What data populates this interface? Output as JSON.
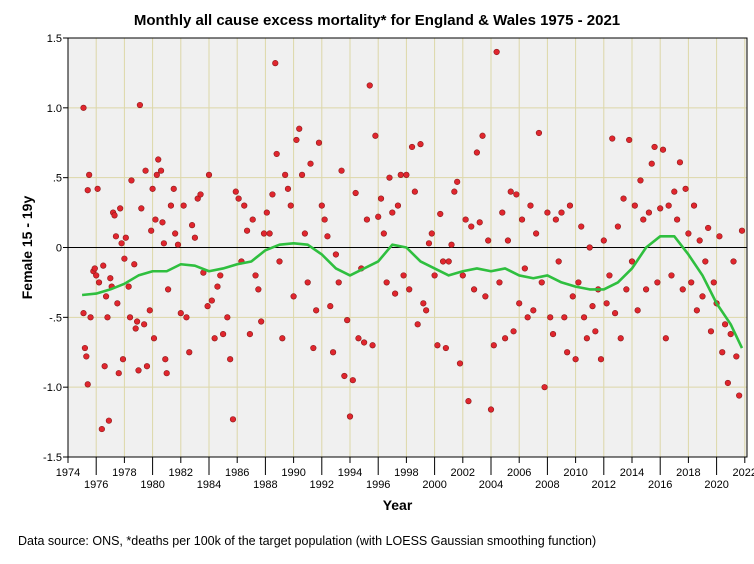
{
  "chart_data": {
    "type": "scatter",
    "title": "Monthly all cause excess mortality* for England & Wales 1975 - 2021",
    "xlabel": "Year",
    "ylabel": "Female 15 - 19y",
    "caption": "Data source: ONS, *deaths per 100k of the target population (with LOESS Gaussian smoothing function)",
    "xlim": [
      1974,
      2022
    ],
    "ylim": [
      -1.5,
      1.5
    ],
    "xticks": [
      1974,
      1976,
      1978,
      1980,
      1982,
      1984,
      1986,
      1988,
      1990,
      1992,
      1994,
      1996,
      1998,
      2000,
      2002,
      2004,
      2006,
      2008,
      2010,
      2012,
      2014,
      2016,
      2018,
      2020,
      2022
    ],
    "yticks": [
      {
        "v": 1.5,
        "label": "1.5"
      },
      {
        "v": 1.0,
        "label": "1.0"
      },
      {
        "v": 0.5,
        "label": ".5"
      },
      {
        "v": 0,
        "label": "0"
      },
      {
        "v": -0.5,
        "label": "-.5"
      },
      {
        "v": -1.0,
        "label": "-1.0"
      },
      {
        "v": -1.5,
        "label": "-1.5"
      }
    ],
    "grid": true,
    "reference_line_y": 0,
    "colors": {
      "points": "#e0262e",
      "point_edge": "#8b1a1a",
      "smooth": "#2fbf3f",
      "plot_bg": "#f0f0f0",
      "grid": "#ddd7a8"
    },
    "points": [
      [
        1975.1,
        1.0
      ],
      [
        1975.1,
        -0.47
      ],
      [
        1975.2,
        -0.72
      ],
      [
        1975.3,
        -0.78
      ],
      [
        1975.4,
        -0.98
      ],
      [
        1975.4,
        0.41
      ],
      [
        1975.5,
        0.52
      ],
      [
        1975.6,
        -0.5
      ],
      [
        1975.8,
        -0.17
      ],
      [
        1975.9,
        -0.15
      ],
      [
        1976.0,
        -0.2
      ],
      [
        1976.1,
        0.42
      ],
      [
        1976.2,
        -0.25
      ],
      [
        1976.4,
        -1.3
      ],
      [
        1976.5,
        -0.13
      ],
      [
        1976.6,
        -0.85
      ],
      [
        1976.7,
        -0.35
      ],
      [
        1976.8,
        -0.5
      ],
      [
        1976.9,
        -1.24
      ],
      [
        1977.0,
        -0.22
      ],
      [
        1977.1,
        -0.28
      ],
      [
        1977.2,
        0.25
      ],
      [
        1977.3,
        0.23
      ],
      [
        1977.4,
        0.08
      ],
      [
        1977.5,
        -0.4
      ],
      [
        1977.6,
        -0.9
      ],
      [
        1977.7,
        0.28
      ],
      [
        1977.8,
        0.03
      ],
      [
        1977.9,
        -0.8
      ],
      [
        1978.0,
        -0.08
      ],
      [
        1978.1,
        0.07
      ],
      [
        1978.3,
        -0.28
      ],
      [
        1978.4,
        -0.5
      ],
      [
        1978.5,
        0.48
      ],
      [
        1978.7,
        -0.12
      ],
      [
        1978.8,
        -0.58
      ],
      [
        1978.9,
        -0.53
      ],
      [
        1979.0,
        -0.88
      ],
      [
        1979.1,
        1.02
      ],
      [
        1979.2,
        0.28
      ],
      [
        1979.4,
        -0.55
      ],
      [
        1979.5,
        0.55
      ],
      [
        1979.6,
        -0.85
      ],
      [
        1979.8,
        -0.45
      ],
      [
        1979.9,
        0.12
      ],
      [
        1980.0,
        0.42
      ],
      [
        1980.1,
        -0.65
      ],
      [
        1980.2,
        0.2
      ],
      [
        1980.3,
        0.52
      ],
      [
        1980.4,
        0.63
      ],
      [
        1980.6,
        0.55
      ],
      [
        1980.7,
        0.18
      ],
      [
        1980.8,
        0.03
      ],
      [
        1980.9,
        -0.8
      ],
      [
        1981.0,
        -0.9
      ],
      [
        1981.1,
        -0.3
      ],
      [
        1981.3,
        0.3
      ],
      [
        1981.5,
        0.42
      ],
      [
        1981.6,
        0.1
      ],
      [
        1981.8,
        0.02
      ],
      [
        1982.0,
        -0.47
      ],
      [
        1982.2,
        0.3
      ],
      [
        1982.4,
        -0.5
      ],
      [
        1982.6,
        -0.75
      ],
      [
        1982.8,
        0.16
      ],
      [
        1983.0,
        0.07
      ],
      [
        1983.2,
        0.35
      ],
      [
        1983.4,
        0.38
      ],
      [
        1983.6,
        -0.18
      ],
      [
        1983.9,
        -0.42
      ],
      [
        1984.0,
        0.52
      ],
      [
        1984.2,
        -0.38
      ],
      [
        1984.4,
        -0.65
      ],
      [
        1984.6,
        -0.28
      ],
      [
        1984.8,
        -0.2
      ],
      [
        1985.0,
        -0.62
      ],
      [
        1985.3,
        -0.5
      ],
      [
        1985.5,
        -0.8
      ],
      [
        1985.7,
        -1.23
      ],
      [
        1985.9,
        0.4
      ],
      [
        1986.1,
        0.35
      ],
      [
        1986.3,
        -0.1
      ],
      [
        1986.5,
        0.3
      ],
      [
        1986.7,
        0.12
      ],
      [
        1986.9,
        -0.62
      ],
      [
        1987.1,
        0.2
      ],
      [
        1987.3,
        -0.2
      ],
      [
        1987.5,
        -0.3
      ],
      [
        1987.7,
        -0.53
      ],
      [
        1987.9,
        0.1
      ],
      [
        1988.1,
        0.25
      ],
      [
        1988.3,
        0.1
      ],
      [
        1988.5,
        0.38
      ],
      [
        1988.7,
        1.32
      ],
      [
        1988.8,
        0.67
      ],
      [
        1989.0,
        -0.1
      ],
      [
        1989.2,
        -0.65
      ],
      [
        1989.4,
        0.52
      ],
      [
        1989.6,
        0.42
      ],
      [
        1989.8,
        0.3
      ],
      [
        1990.0,
        -0.35
      ],
      [
        1990.2,
        0.77
      ],
      [
        1990.4,
        0.85
      ],
      [
        1990.6,
        0.52
      ],
      [
        1990.8,
        0.1
      ],
      [
        1991.0,
        -0.25
      ],
      [
        1991.2,
        0.6
      ],
      [
        1991.4,
        -0.72
      ],
      [
        1991.6,
        -0.45
      ],
      [
        1991.8,
        0.75
      ],
      [
        1992.0,
        0.3
      ],
      [
        1992.2,
        0.2
      ],
      [
        1992.4,
        0.08
      ],
      [
        1992.6,
        -0.42
      ],
      [
        1992.8,
        -0.75
      ],
      [
        1993.0,
        -0.05
      ],
      [
        1993.2,
        -0.25
      ],
      [
        1993.4,
        0.55
      ],
      [
        1993.6,
        -0.92
      ],
      [
        1993.8,
        -0.52
      ],
      [
        1994.0,
        -1.21
      ],
      [
        1994.2,
        -0.95
      ],
      [
        1994.4,
        0.39
      ],
      [
        1994.6,
        -0.65
      ],
      [
        1994.8,
        -0.15
      ],
      [
        1995.0,
        -0.68
      ],
      [
        1995.2,
        0.2
      ],
      [
        1995.4,
        1.16
      ],
      [
        1995.6,
        -0.7
      ],
      [
        1995.8,
        0.8
      ],
      [
        1996.0,
        0.22
      ],
      [
        1996.2,
        0.35
      ],
      [
        1996.4,
        0.1
      ],
      [
        1996.6,
        -0.25
      ],
      [
        1996.8,
        0.5
      ],
      [
        1997.0,
        0.25
      ],
      [
        1997.2,
        -0.33
      ],
      [
        1997.4,
        0.3
      ],
      [
        1997.6,
        0.52
      ],
      [
        1997.8,
        -0.2
      ],
      [
        1998.0,
        0.52
      ],
      [
        1998.2,
        -0.3
      ],
      [
        1998.4,
        0.72
      ],
      [
        1998.6,
        0.4
      ],
      [
        1998.8,
        -0.55
      ],
      [
        1999.0,
        0.74
      ],
      [
        1999.2,
        -0.4
      ],
      [
        1999.4,
        -0.45
      ],
      [
        1999.6,
        0.03
      ],
      [
        1999.8,
        0.1
      ],
      [
        2000.0,
        -0.2
      ],
      [
        2000.2,
        -0.7
      ],
      [
        2000.4,
        0.24
      ],
      [
        2000.6,
        -0.1
      ],
      [
        2000.8,
        -0.72
      ],
      [
        2001.0,
        -0.1
      ],
      [
        2001.2,
        0.02
      ],
      [
        2001.4,
        0.4
      ],
      [
        2001.6,
        0.47
      ],
      [
        2001.8,
        -0.83
      ],
      [
        2002.0,
        -0.2
      ],
      [
        2002.2,
        0.2
      ],
      [
        2002.4,
        -1.1
      ],
      [
        2002.6,
        0.15
      ],
      [
        2002.8,
        -0.3
      ],
      [
        2003.0,
        0.68
      ],
      [
        2003.2,
        0.18
      ],
      [
        2003.4,
        0.8
      ],
      [
        2003.6,
        -0.35
      ],
      [
        2003.8,
        0.05
      ],
      [
        2004.0,
        -1.16
      ],
      [
        2004.2,
        -0.7
      ],
      [
        2004.4,
        1.4
      ],
      [
        2004.6,
        -0.25
      ],
      [
        2004.8,
        0.25
      ],
      [
        2005.0,
        -0.65
      ],
      [
        2005.2,
        0.05
      ],
      [
        2005.4,
        0.4
      ],
      [
        2005.6,
        -0.6
      ],
      [
        2005.8,
        0.38
      ],
      [
        2006.0,
        -0.4
      ],
      [
        2006.2,
        0.2
      ],
      [
        2006.4,
        -0.15
      ],
      [
        2006.6,
        -0.5
      ],
      [
        2006.8,
        0.3
      ],
      [
        2007.0,
        -0.45
      ],
      [
        2007.2,
        0.1
      ],
      [
        2007.4,
        0.82
      ],
      [
        2007.6,
        -0.25
      ],
      [
        2007.8,
        -1.0
      ],
      [
        2008.0,
        0.25
      ],
      [
        2008.2,
        -0.5
      ],
      [
        2008.4,
        -0.62
      ],
      [
        2008.6,
        0.2
      ],
      [
        2008.8,
        -0.1
      ],
      [
        2009.0,
        0.25
      ],
      [
        2009.2,
        -0.5
      ],
      [
        2009.4,
        -0.75
      ],
      [
        2009.6,
        0.3
      ],
      [
        2009.8,
        -0.35
      ],
      [
        2010.0,
        -0.8
      ],
      [
        2010.2,
        -0.25
      ],
      [
        2010.4,
        0.15
      ],
      [
        2010.6,
        -0.5
      ],
      [
        2010.8,
        -0.65
      ],
      [
        2011.0,
        0.0
      ],
      [
        2011.2,
        -0.42
      ],
      [
        2011.4,
        -0.6
      ],
      [
        2011.6,
        -0.3
      ],
      [
        2011.8,
        -0.8
      ],
      [
        2012.0,
        0.05
      ],
      [
        2012.2,
        -0.4
      ],
      [
        2012.4,
        -0.2
      ],
      [
        2012.6,
        0.78
      ],
      [
        2012.8,
        -0.47
      ],
      [
        2013.0,
        0.15
      ],
      [
        2013.2,
        -0.65
      ],
      [
        2013.4,
        0.35
      ],
      [
        2013.6,
        -0.3
      ],
      [
        2013.8,
        0.77
      ],
      [
        2014.0,
        -0.1
      ],
      [
        2014.2,
        0.3
      ],
      [
        2014.4,
        -0.45
      ],
      [
        2014.6,
        0.48
      ],
      [
        2014.8,
        0.2
      ],
      [
        2015.0,
        -0.3
      ],
      [
        2015.2,
        0.25
      ],
      [
        2015.4,
        0.6
      ],
      [
        2015.6,
        0.72
      ],
      [
        2015.8,
        -0.25
      ],
      [
        2016.0,
        0.28
      ],
      [
        2016.2,
        0.7
      ],
      [
        2016.4,
        -0.65
      ],
      [
        2016.6,
        0.3
      ],
      [
        2016.8,
        -0.2
      ],
      [
        2017.0,
        0.4
      ],
      [
        2017.2,
        0.2
      ],
      [
        2017.4,
        0.61
      ],
      [
        2017.6,
        -0.3
      ],
      [
        2017.8,
        0.42
      ],
      [
        2018.0,
        0.1
      ],
      [
        2018.2,
        -0.25
      ],
      [
        2018.4,
        0.3
      ],
      [
        2018.6,
        -0.45
      ],
      [
        2018.8,
        0.05
      ],
      [
        2019.0,
        -0.35
      ],
      [
        2019.2,
        -0.1
      ],
      [
        2019.4,
        0.14
      ],
      [
        2019.6,
        -0.6
      ],
      [
        2019.8,
        -0.25
      ],
      [
        2020.0,
        -0.4
      ],
      [
        2020.2,
        0.08
      ],
      [
        2020.4,
        -0.75
      ],
      [
        2020.6,
        -0.55
      ],
      [
        2020.8,
        -0.97
      ],
      [
        2021.0,
        -0.62
      ],
      [
        2021.2,
        -0.1
      ],
      [
        2021.4,
        -0.78
      ],
      [
        2021.6,
        -1.06
      ],
      [
        2021.8,
        0.12
      ]
    ],
    "smooth": [
      [
        1975,
        -0.34
      ],
      [
        1976,
        -0.33
      ],
      [
        1977,
        -0.3
      ],
      [
        1978,
        -0.26
      ],
      [
        1979,
        -0.2
      ],
      [
        1980,
        -0.17
      ],
      [
        1981,
        -0.17
      ],
      [
        1982,
        -0.12
      ],
      [
        1983,
        -0.13
      ],
      [
        1984,
        -0.17
      ],
      [
        1985,
        -0.15
      ],
      [
        1986,
        -0.12
      ],
      [
        1987,
        -0.1
      ],
      [
        1988,
        -0.02
      ],
      [
        1989,
        0.02
      ],
      [
        1990,
        0.03
      ],
      [
        1991,
        0.02
      ],
      [
        1992,
        -0.05
      ],
      [
        1993,
        -0.15
      ],
      [
        1994,
        -0.2
      ],
      [
        1995,
        -0.15
      ],
      [
        1996,
        -0.1
      ],
      [
        1997,
        0.02
      ],
      [
        1998,
        0.0
      ],
      [
        1999,
        -0.1
      ],
      [
        2000,
        -0.15
      ],
      [
        2001,
        -0.2
      ],
      [
        2002,
        -0.17
      ],
      [
        2003,
        -0.15
      ],
      [
        2004,
        -0.17
      ],
      [
        2005,
        -0.15
      ],
      [
        2006,
        -0.2
      ],
      [
        2007,
        -0.22
      ],
      [
        2008,
        -0.2
      ],
      [
        2009,
        -0.25
      ],
      [
        2010,
        -0.28
      ],
      [
        2011,
        -0.3
      ],
      [
        2012,
        -0.3
      ],
      [
        2013,
        -0.25
      ],
      [
        2014,
        -0.15
      ],
      [
        2015,
        0.0
      ],
      [
        2016,
        0.08
      ],
      [
        2017,
        0.08
      ],
      [
        2018,
        -0.05
      ],
      [
        2019,
        -0.2
      ],
      [
        2020,
        -0.4
      ],
      [
        2021,
        -0.55
      ],
      [
        2021.8,
        -0.72
      ]
    ]
  }
}
